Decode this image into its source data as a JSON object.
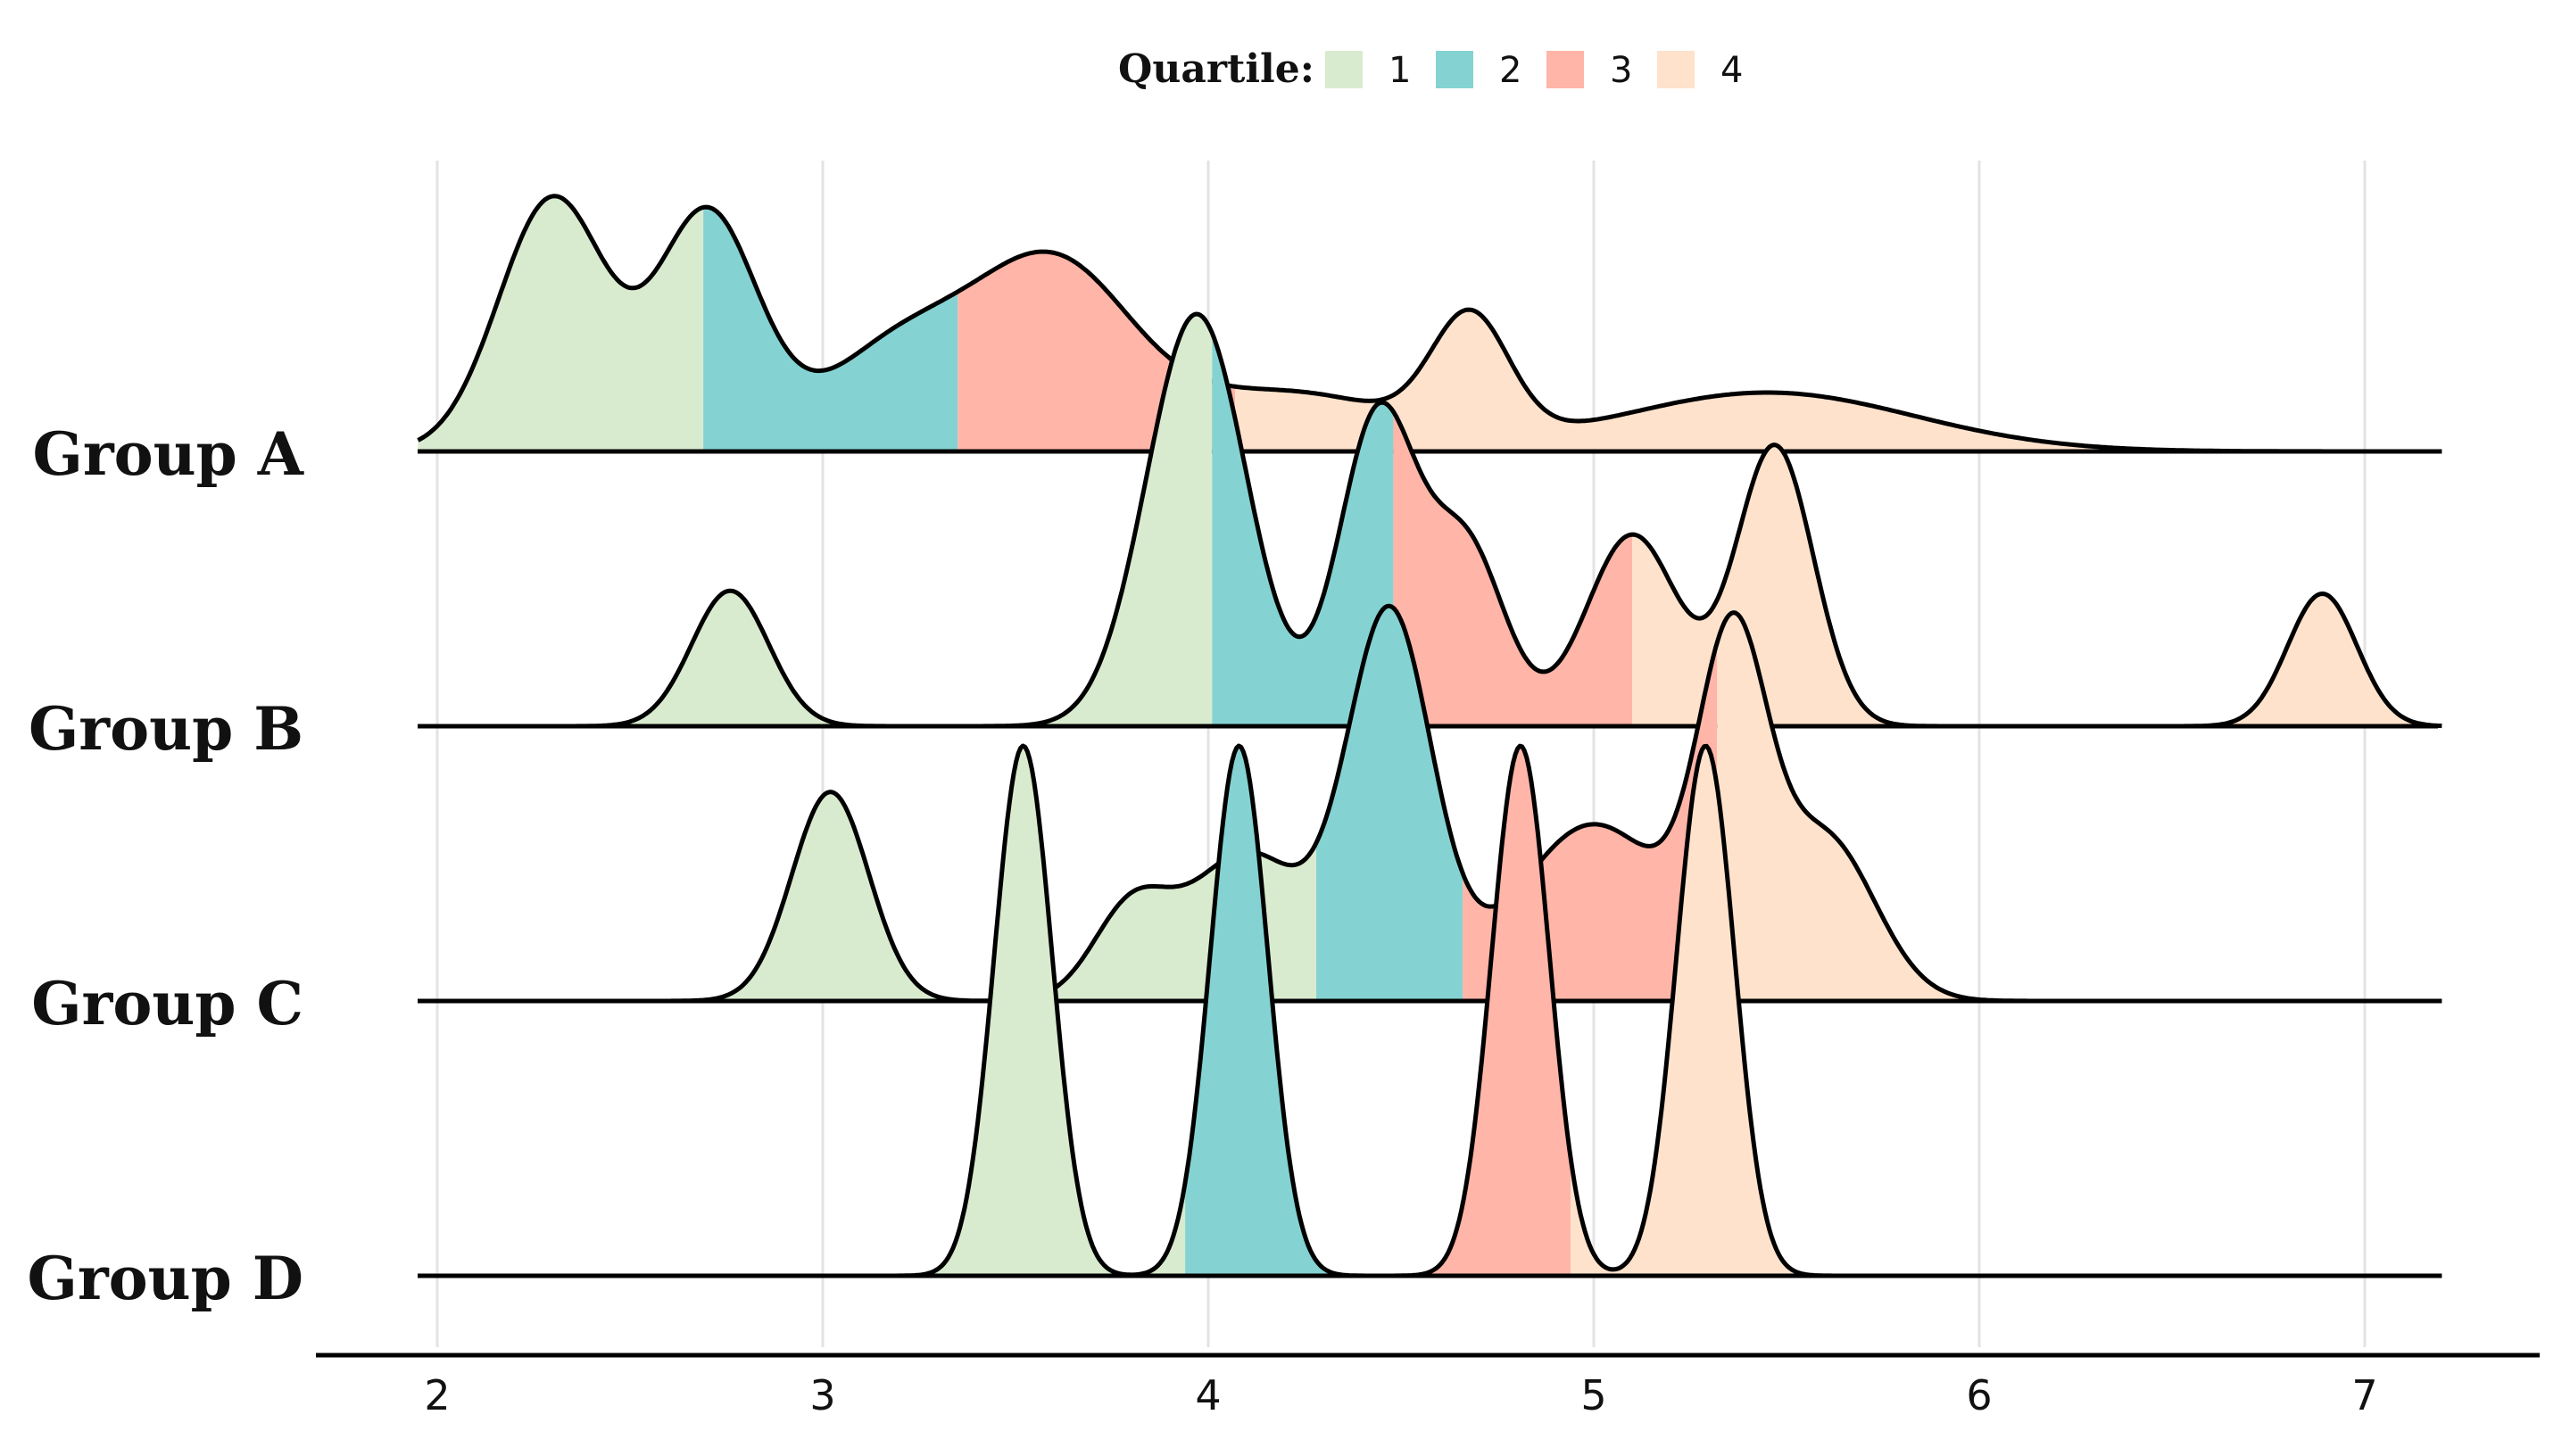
{
  "chart_data": {
    "type": "ridgeline",
    "title": "",
    "xlabel": "",
    "ylabel": "",
    "xlim": [
      1.95,
      7.2
    ],
    "x_ticks": [
      "2",
      "3",
      "4",
      "5",
      "6",
      "7"
    ],
    "x_tick_values": [
      2,
      3,
      4,
      5,
      6,
      7
    ],
    "grid": "vertical",
    "legend": {
      "title": "Quartile:",
      "position": "top-center",
      "entries": [
        {
          "label": "1",
          "color": "#d9ebcf"
        },
        {
          "label": "2",
          "color": "#84d3d2"
        },
        {
          "label": "3",
          "color": "#ffb5a8"
        },
        {
          "label": "4",
          "color": "#fee2cc"
        }
      ]
    },
    "groups": [
      {
        "name": "Group A",
        "quartile_breaks": [
          2.69,
          3.35,
          4.07
        ],
        "components": [
          {
            "mu": 2.3,
            "sigma": 0.14,
            "w": 0.86
          },
          {
            "mu": 2.7,
            "sigma": 0.13,
            "w": 0.8
          },
          {
            "mu": 3.2,
            "sigma": 0.2,
            "w": 0.35
          },
          {
            "mu": 3.6,
            "sigma": 0.2,
            "w": 0.6
          },
          {
            "mu": 4.2,
            "sigma": 0.3,
            "w": 0.2
          },
          {
            "mu": 4.68,
            "sigma": 0.1,
            "w": 0.4
          },
          {
            "mu": 5.45,
            "sigma": 0.38,
            "w": 0.2
          }
        ]
      },
      {
        "name": "Group B",
        "quartile_breaks": [
          4.01,
          4.48,
          5.1
        ],
        "components": [
          {
            "mu": 2.76,
            "sigma": 0.1,
            "w": 0.46
          },
          {
            "mu": 3.97,
            "sigma": 0.13,
            "w": 1.4
          },
          {
            "mu": 4.44,
            "sigma": 0.1,
            "w": 1.05
          },
          {
            "mu": 4.67,
            "sigma": 0.1,
            "w": 0.6
          },
          {
            "mu": 5.1,
            "sigma": 0.12,
            "w": 0.65
          },
          {
            "mu": 5.47,
            "sigma": 0.1,
            "w": 0.95
          },
          {
            "mu": 6.89,
            "sigma": 0.09,
            "w": 0.45
          }
        ]
      },
      {
        "name": "Group C",
        "quartile_breaks": [
          4.28,
          4.66,
          5.32
        ],
        "components": [
          {
            "mu": 3.02,
            "sigma": 0.1,
            "w": 0.71
          },
          {
            "mu": 3.8,
            "sigma": 0.1,
            "w": 0.3
          },
          {
            "mu": 4.1,
            "sigma": 0.15,
            "w": 0.5
          },
          {
            "mu": 4.47,
            "sigma": 0.11,
            "w": 1.3
          },
          {
            "mu": 5.0,
            "sigma": 0.2,
            "w": 0.6
          },
          {
            "mu": 5.36,
            "sigma": 0.09,
            "w": 1.1
          },
          {
            "mu": 5.6,
            "sigma": 0.13,
            "w": 0.55
          }
        ]
      },
      {
        "name": "Group D",
        "quartile_breaks": [
          3.94,
          4.52,
          4.94
        ],
        "components": [
          {
            "mu": 3.52,
            "sigma": 0.075,
            "w": 1.8
          },
          {
            "mu": 4.08,
            "sigma": 0.075,
            "w": 1.8
          },
          {
            "mu": 4.81,
            "sigma": 0.075,
            "w": 1.8
          },
          {
            "mu": 5.29,
            "sigma": 0.075,
            "w": 1.8
          }
        ]
      }
    ]
  }
}
